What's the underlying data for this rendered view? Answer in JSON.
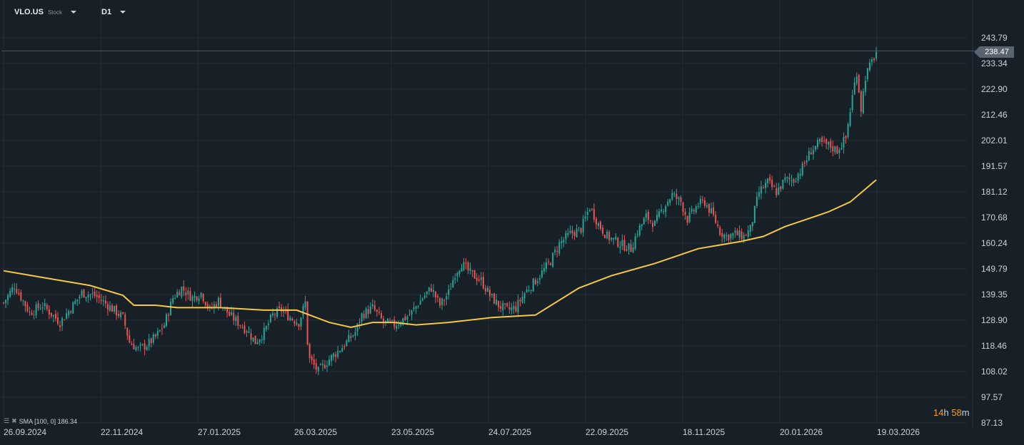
{
  "header": {
    "symbol": "VLO.US",
    "type": "Stock",
    "timeframe": "D1"
  },
  "indicator": {
    "label": "SMA [100, 0] 186.34"
  },
  "timer": {
    "hours": "14",
    "h": "h",
    "minutes": "58",
    "m": "m"
  },
  "last_price_label": "238.47",
  "colors": {
    "background": "#171f27",
    "up": "#26a69a",
    "down": "#ef5350",
    "sma": "#f5c842",
    "grid": "#242e38"
  },
  "chart_data": {
    "type": "candlestick",
    "instrument": "VLO.US",
    "timeframe": "D1",
    "y_ticks": [
      243.79,
      233.34,
      222.9,
      212.46,
      202.01,
      191.57,
      181.12,
      170.68,
      160.24,
      149.79,
      139.35,
      128.9,
      118.46,
      108.02,
      97.57,
      87.13
    ],
    "x_ticks": [
      "26.09.2024",
      "22.11.2024",
      "27.01.2025",
      "26.03.2025",
      "23.05.2025",
      "24.07.2025",
      "22.09.2025",
      "18.11.2025",
      "20.01.2026",
      "19.03.2026"
    ],
    "ylim": [
      87.13,
      243.79
    ],
    "last_price": 238.47,
    "price_path": [
      [
        0,
        136
      ],
      [
        5,
        143
      ],
      [
        12,
        132
      ],
      [
        18,
        135
      ],
      [
        26,
        128
      ],
      [
        32,
        135
      ],
      [
        36,
        140
      ],
      [
        42,
        139
      ],
      [
        48,
        135
      ],
      [
        55,
        130
      ],
      [
        58,
        120
      ],
      [
        62,
        117
      ],
      [
        66,
        119
      ],
      [
        70,
        122
      ],
      [
        74,
        127
      ],
      [
        78,
        138
      ],
      [
        82,
        142
      ],
      [
        87,
        138
      ],
      [
        91,
        140
      ],
      [
        95,
        133
      ],
      [
        99,
        137
      ],
      [
        104,
        131
      ],
      [
        108,
        128
      ],
      [
        112,
        125
      ],
      [
        116,
        120
      ],
      [
        120,
        124
      ],
      [
        124,
        131
      ],
      [
        128,
        133
      ],
      [
        132,
        130
      ],
      [
        136,
        128
      ],
      [
        139,
        136
      ],
      [
        140,
        120
      ],
      [
        141,
        113
      ],
      [
        145,
        108
      ],
      [
        150,
        113
      ],
      [
        156,
        118
      ],
      [
        162,
        124
      ],
      [
        165,
        131
      ],
      [
        170,
        134
      ],
      [
        175,
        128
      ],
      [
        180,
        127
      ],
      [
        187,
        131
      ],
      [
        193,
        138
      ],
      [
        197,
        142
      ],
      [
        201,
        135
      ],
      [
        205,
        140
      ],
      [
        208,
        148
      ],
      [
        211,
        152
      ],
      [
        215,
        148
      ],
      [
        220,
        145
      ],
      [
        224,
        139
      ],
      [
        228,
        135
      ],
      [
        232,
        133
      ],
      [
        236,
        134
      ],
      [
        240,
        140
      ],
      [
        246,
        146
      ],
      [
        252,
        153
      ],
      [
        256,
        160
      ],
      [
        261,
        164
      ],
      [
        266,
        166
      ],
      [
        270,
        175
      ],
      [
        274,
        168
      ],
      [
        278,
        163
      ],
      [
        284,
        160
      ],
      [
        289,
        158
      ],
      [
        292,
        165
      ],
      [
        296,
        171
      ],
      [
        300,
        168
      ],
      [
        304,
        175
      ],
      [
        308,
        180
      ],
      [
        312,
        177
      ],
      [
        315,
        170
      ],
      [
        320,
        176
      ],
      [
        323,
        177
      ],
      [
        327,
        171
      ],
      [
        330,
        165
      ],
      [
        333,
        163
      ],
      [
        337,
        164
      ],
      [
        341,
        163
      ],
      [
        344,
        166
      ],
      [
        348,
        181
      ],
      [
        352,
        185
      ],
      [
        356,
        181
      ],
      [
        360,
        186
      ],
      [
        364,
        186
      ],
      [
        368,
        191
      ],
      [
        372,
        198
      ],
      [
        376,
        201
      ],
      [
        380,
        200
      ],
      [
        384,
        198
      ],
      [
        388,
        203
      ],
      [
        391,
        220
      ],
      [
        393,
        230
      ],
      [
        395,
        215
      ],
      [
        397,
        228
      ],
      [
        400,
        234
      ],
      [
        402,
        238
      ]
    ],
    "sma_100_path": [
      [
        0,
        149
      ],
      [
        20,
        146
      ],
      [
        40,
        143
      ],
      [
        55,
        139
      ],
      [
        60,
        135
      ],
      [
        70,
        135
      ],
      [
        80,
        134
      ],
      [
        100,
        134
      ],
      [
        120,
        133
      ],
      [
        135,
        133
      ],
      [
        150,
        128
      ],
      [
        160,
        126
      ],
      [
        170,
        128
      ],
      [
        180,
        128
      ],
      [
        190,
        127
      ],
      [
        205,
        128
      ],
      [
        225,
        130
      ],
      [
        245,
        131
      ],
      [
        265,
        142
      ],
      [
        280,
        147
      ],
      [
        300,
        152
      ],
      [
        320,
        158
      ],
      [
        340,
        161
      ],
      [
        350,
        163
      ],
      [
        360,
        167
      ],
      [
        370,
        170
      ],
      [
        380,
        173
      ],
      [
        390,
        177
      ],
      [
        402,
        186
      ]
    ],
    "sma_last": 186.34,
    "sma_period": 100
  }
}
